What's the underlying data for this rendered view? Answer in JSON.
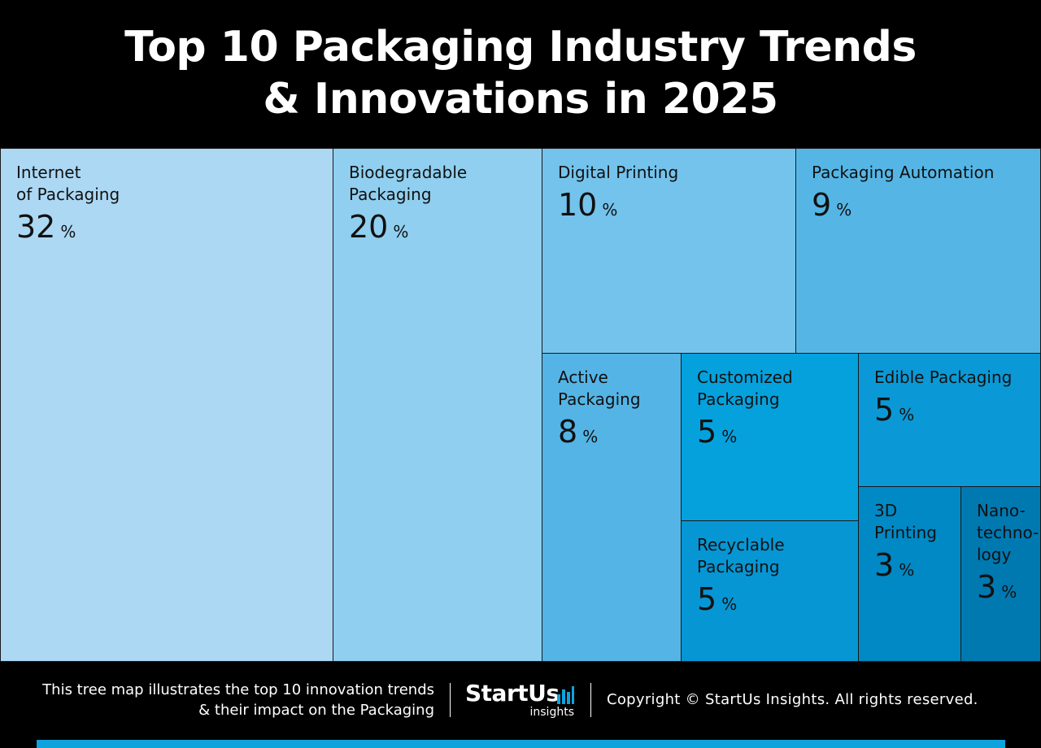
{
  "title": {
    "line1": "Top 10 Packaging Industry Trends",
    "line2": "& Innovations in 2025"
  },
  "chart_data": {
    "type": "treemap",
    "title": "Top 10 Packaging Industry Trends & Innovations in 2025",
    "unit": "%",
    "items": [
      {
        "name": "Internet\nof Packaging",
        "value": 32,
        "color": "#acd8f4"
      },
      {
        "name": "Biodegradable\nPackaging",
        "value": 20,
        "color": "#90cfef"
      },
      {
        "name": "Digital Printing",
        "value": 10,
        "color": "#74c3ec"
      },
      {
        "name": "Packaging Automation",
        "value": 9,
        "color": "#55b6e6"
      },
      {
        "name": "Active\nPackaging",
        "value": 8,
        "color": "#54b4e5"
      },
      {
        "name": "Customized\nPackaging",
        "value": 5,
        "color": "#05a1dd"
      },
      {
        "name": "Edible Packaging",
        "value": 5,
        "color": "#0a99d6"
      },
      {
        "name": "Recyclable\nPackaging",
        "value": 5,
        "color": "#0696d3"
      },
      {
        "name": "3D\nPrinting",
        "value": 3,
        "color": "#0089c4"
      },
      {
        "name": "Nano-\ntechno-\nlogy",
        "value": 3,
        "color": "#0079b1"
      }
    ]
  },
  "footer": {
    "description_line1": "This tree map illustrates the top 10 innovation trends",
    "description_line2": "& their impact on the Packaging",
    "logo_main": "StartUs",
    "logo_sub": "insights",
    "copyright": "Copyright © StartUs Insights. All rights reserved."
  }
}
